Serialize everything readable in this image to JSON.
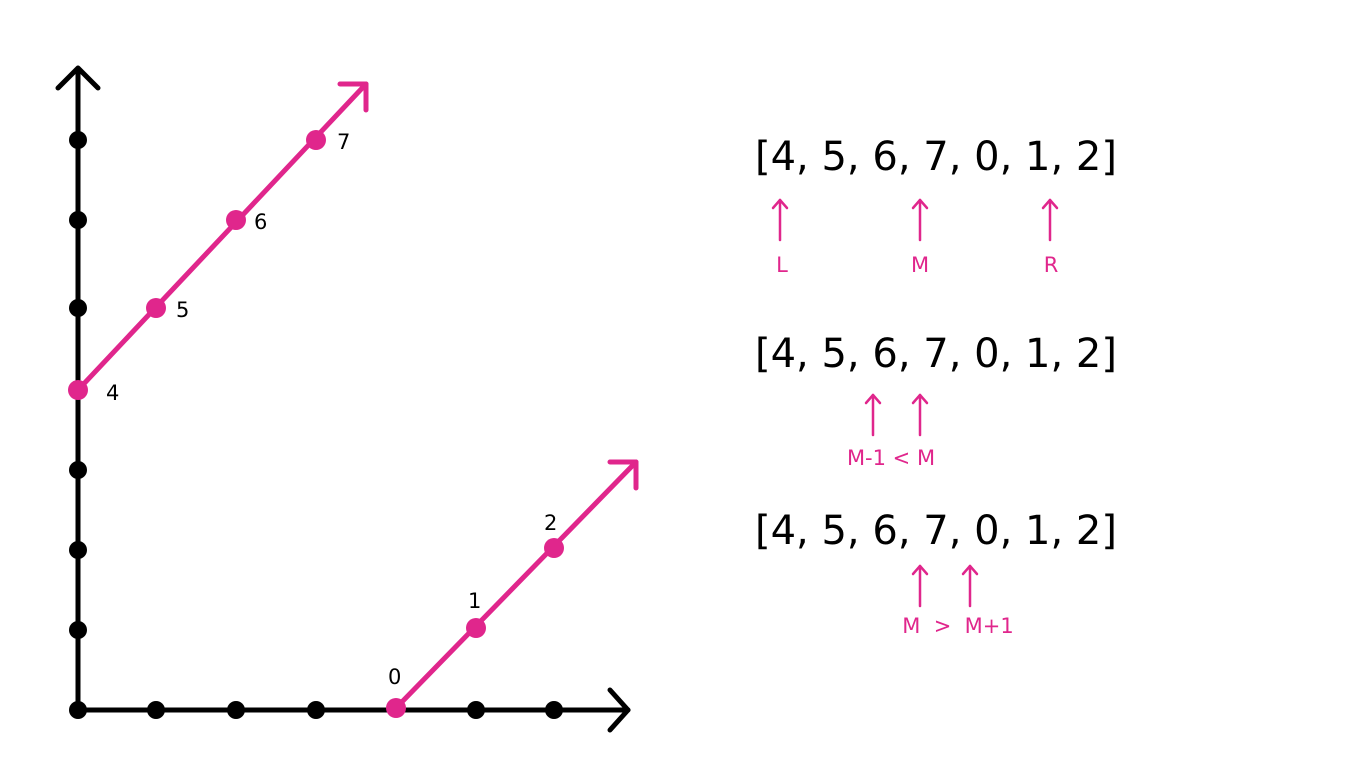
{
  "colors": {
    "axis": "#000000",
    "accent": "#e0268c"
  },
  "graph": {
    "upper_labels": [
      "4",
      "5",
      "6",
      "7"
    ],
    "lower_labels": [
      "0",
      "1",
      "2"
    ]
  },
  "rows": [
    {
      "array_text": "[4, 5, 6, 7, 0, 1, 2]",
      "pointers": [
        {
          "label": "L"
        },
        {
          "label": "M"
        },
        {
          "label": "R"
        }
      ]
    },
    {
      "array_text": "[4, 5, 6, 7, 0, 1, 2]",
      "caption": "M-1 < M"
    },
    {
      "array_text": "[4, 5, 6, 7, 0, 1, 2]",
      "caption": "M  >  M+1"
    }
  ]
}
